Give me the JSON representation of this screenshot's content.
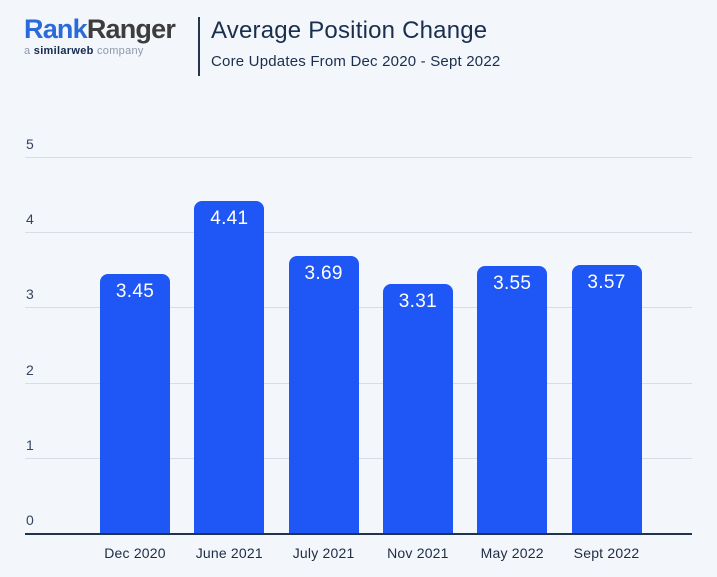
{
  "header": {
    "logo": {
      "part1": "Rank",
      "part2": "Ranger",
      "tagline_prefix": "a",
      "tagline_brand": "similarweb",
      "tagline_suffix": "company"
    },
    "title": "Average Position Change",
    "subtitle": "Core Updates From Dec 2020 - Sept 2022"
  },
  "colors": {
    "background": "#f3f6fb",
    "bar": "#1F57F7",
    "bar_label": "#ffffff",
    "gridline": "#d9dce3",
    "axis_line": "#1f354f",
    "title_text": "#1a2e4e",
    "logo_blue": "#2b6ad9",
    "logo_dark": "#3d3d3d"
  },
  "chart_data": {
    "type": "bar",
    "title": "Average Position Change",
    "subtitle": "Core Updates From Dec 2020 - Sept 2022",
    "categories": [
      "Dec 2020",
      "June 2021",
      "July 2021",
      "Nov 2021",
      "May 2022",
      "Sept 2022"
    ],
    "values": [
      3.45,
      4.41,
      3.69,
      3.31,
      3.55,
      3.57
    ],
    "value_labels": [
      "3.45",
      "4.41",
      "3.69",
      "3.31",
      "3.55",
      "3.57"
    ],
    "xlabel": "",
    "ylabel": "",
    "ylim": [
      0,
      5
    ],
    "yticks": [
      0,
      1,
      2,
      3,
      4,
      5
    ],
    "grid": true,
    "legend": false,
    "bar_color": "#1F57F7",
    "value_label_color": "#ffffff"
  }
}
